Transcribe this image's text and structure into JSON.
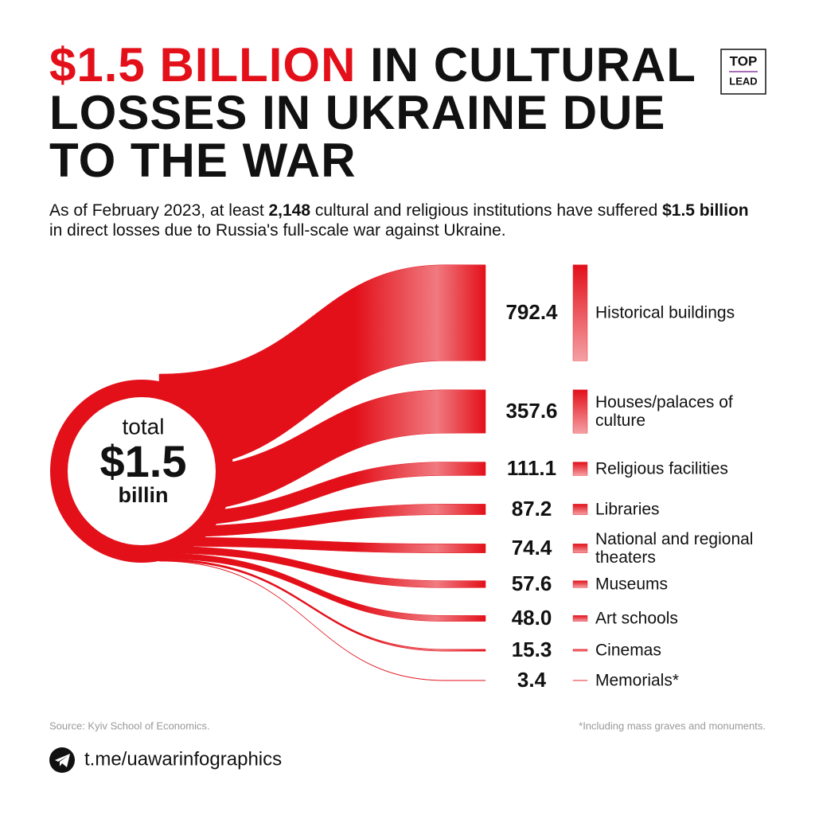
{
  "chart_data": {
    "type": "sankey",
    "title_highlight": "$1.5 BILLION",
    "title": "IN CULTURAL LOSSES IN UKRAINE DUE TO THE WAR",
    "subtitle": [
      {
        "text": "As of February 2023, at least ",
        "bold": false
      },
      {
        "text": "2,148",
        "bold": true
      },
      {
        "text": " cultural and religious institutions have suffered ",
        "bold": false
      },
      {
        "text": "$1.5 billion",
        "bold": true
      },
      {
        "text": " in direct losses due to Russia's full-scale war against Ukraine.",
        "bold": false
      }
    ],
    "center_label": [
      "total",
      "$1.5",
      "billin"
    ],
    "categories": [
      "Historical buildings",
      "Houses/palaces of culture",
      "Religious facilities",
      "Libraries",
      "National and regional theaters",
      "Museums",
      "Art schools",
      "Cinemas",
      "Memorials*"
    ],
    "values": [
      792.4,
      357.6,
      111.1,
      87.2,
      74.4,
      57.6,
      48.0,
      15.3,
      3.4
    ],
    "value_labels": [
      "792.4",
      "357.6",
      "111.1",
      "87.2",
      "74.4",
      "57.6",
      "48.0",
      "15.3",
      "3.4"
    ],
    "color": "#e3101a",
    "source": "Source: Kyiv School of Economics.",
    "footnote": "*Including mass graves and monuments.",
    "link": "t.me/uawarinfographics",
    "logo": [
      "TOP",
      "LEAD"
    ]
  }
}
